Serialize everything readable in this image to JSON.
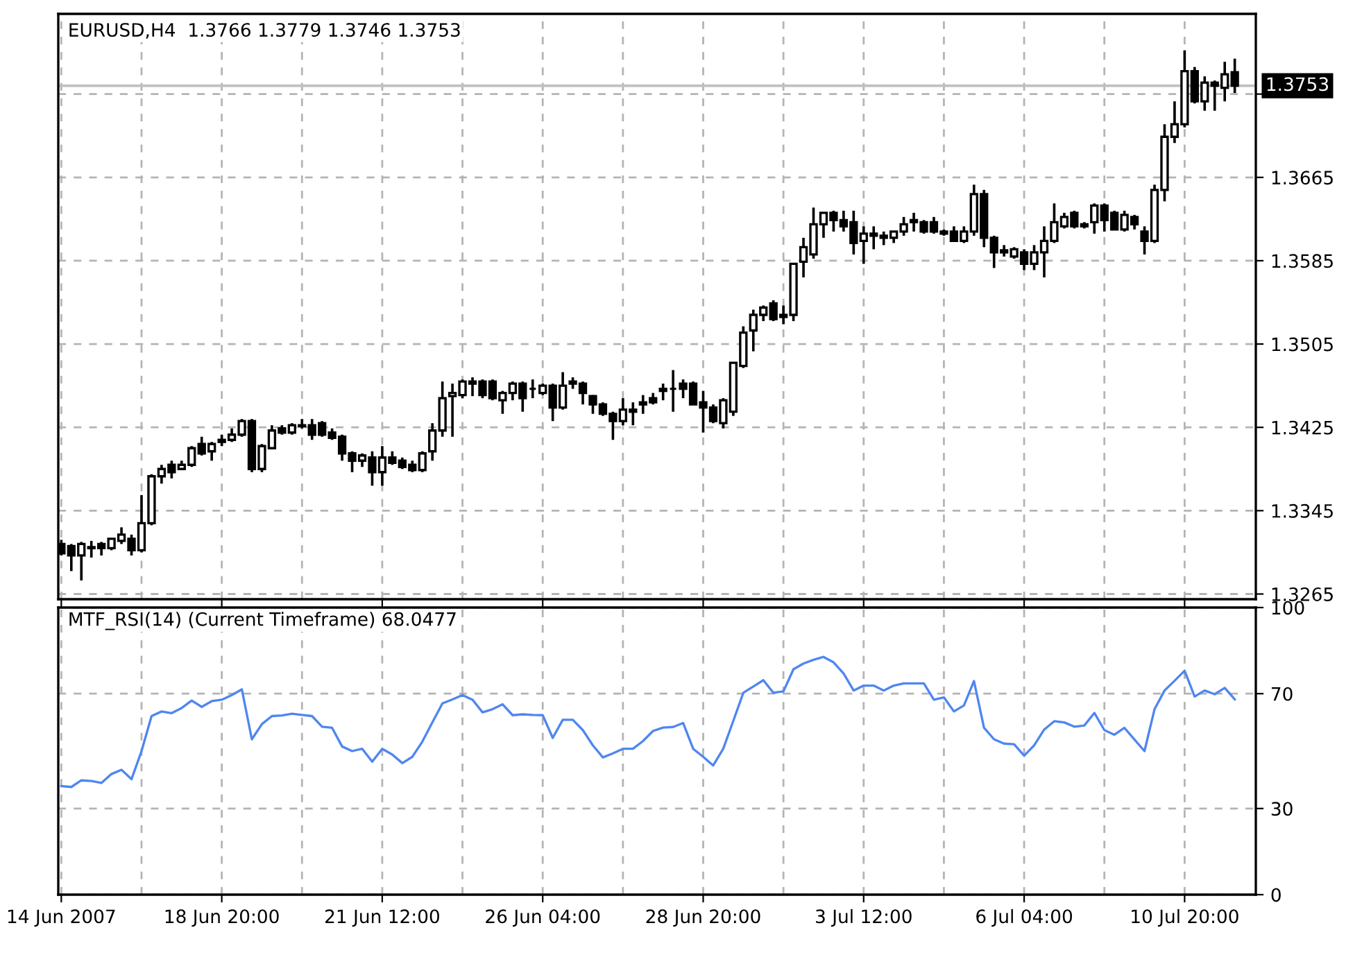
{
  "chart_data": [
    {
      "type": "candlestick",
      "title": "EURUSD,H4  1.3766 1.3779 1.3746 1.3753",
      "categories": [
        null,
        null,
        null,
        null,
        null,
        null,
        null,
        null,
        null,
        null,
        null,
        null,
        null,
        null,
        null,
        null,
        null,
        null,
        null,
        null,
        null,
        null,
        null,
        null,
        null,
        null,
        null,
        null,
        null,
        null,
        null,
        null,
        null,
        null,
        null,
        null,
        null,
        null,
        null,
        null,
        null,
        null,
        null,
        null,
        null,
        null,
        null,
        null,
        null,
        null,
        null,
        null,
        null,
        null,
        null,
        null,
        null,
        null,
        null,
        null,
        null,
        null,
        null,
        null,
        null,
        null,
        null,
        null,
        null,
        null,
        null,
        null,
        null,
        null,
        null,
        null,
        null,
        null,
        null,
        null,
        null,
        null,
        null,
        null,
        null,
        null,
        null,
        null,
        null,
        null,
        null,
        null,
        null,
        null,
        null,
        null,
        null,
        null,
        null,
        null,
        null,
        null,
        null,
        null,
        null,
        null,
        null,
        null,
        null,
        null,
        null,
        null,
        null,
        null,
        null,
        null,
        null,
        null
      ],
      "color": "#000000",
      "ohlc": [
        [
          1.3313,
          1.3317,
          1.3302,
          1.3304
        ],
        [
          1.3311,
          1.3313,
          1.3287,
          1.3302
        ],
        [
          1.3302,
          1.3315,
          1.3278,
          1.3313
        ],
        [
          1.3309,
          1.3316,
          1.33,
          1.331
        ],
        [
          1.3313,
          1.3315,
          1.3302,
          1.3309
        ],
        [
          1.3309,
          1.3318,
          1.3307,
          1.3318
        ],
        [
          1.3316,
          1.3329,
          1.3313,
          1.3322
        ],
        [
          1.3318,
          1.3322,
          1.3302,
          1.3307
        ],
        [
          1.3307,
          1.336,
          1.3305,
          1.3333
        ],
        [
          1.3333,
          1.338,
          1.3331,
          1.3378
        ],
        [
          1.3378,
          1.3389,
          1.3371,
          1.3385
        ],
        [
          1.3389,
          1.3393,
          1.3376,
          1.3382
        ],
        [
          1.3385,
          1.3393,
          1.3384,
          1.3389
        ],
        [
          1.3389,
          1.3407,
          1.3387,
          1.3405
        ],
        [
          1.3409,
          1.3416,
          1.3398,
          1.34
        ],
        [
          1.3402,
          1.3411,
          1.3393,
          1.3409
        ],
        [
          1.3411,
          1.3418,
          1.3407,
          1.3413
        ],
        [
          1.3413,
          1.3424,
          1.3411,
          1.3418
        ],
        [
          1.3418,
          1.3433,
          1.3416,
          1.3431
        ],
        [
          1.3431,
          1.3433,
          1.3382,
          1.3385
        ],
        [
          1.3385,
          1.3409,
          1.3382,
          1.3407
        ],
        [
          1.3405,
          1.3427,
          1.3404,
          1.3422
        ],
        [
          1.3424,
          1.3427,
          1.3418,
          1.342
        ],
        [
          1.342,
          1.3429,
          1.3418,
          1.3427
        ],
        [
          1.3426,
          1.3433,
          1.3424,
          1.3427
        ],
        [
          1.3427,
          1.3433,
          1.3413,
          1.3418
        ],
        [
          1.3429,
          1.3431,
          1.3416,
          1.3418
        ],
        [
          1.342,
          1.3424,
          1.3413,
          1.3415
        ],
        [
          1.3416,
          1.3418,
          1.3393,
          1.34
        ],
        [
          1.34,
          1.3402,
          1.3382,
          1.3393
        ],
        [
          1.3393,
          1.34,
          1.3387,
          1.3398
        ],
        [
          1.3396,
          1.3402,
          1.3369,
          1.3382
        ],
        [
          1.3382,
          1.3407,
          1.3369,
          1.3396
        ],
        [
          1.3396,
          1.3402,
          1.3389,
          1.3391
        ],
        [
          1.3393,
          1.3396,
          1.3385,
          1.3387
        ],
        [
          1.3389,
          1.3393,
          1.3382,
          1.3384
        ],
        [
          1.3384,
          1.3402,
          1.3382,
          1.34
        ],
        [
          1.3402,
          1.3429,
          1.3393,
          1.3422
        ],
        [
          1.3422,
          1.3469,
          1.3416,
          1.3453
        ],
        [
          1.3455,
          1.3467,
          1.3416,
          1.3458
        ],
        [
          1.3456,
          1.3471,
          1.3453,
          1.3469
        ],
        [
          1.3467,
          1.3473,
          1.3455,
          1.3469
        ],
        [
          1.3469,
          1.3471,
          1.3453,
          1.3456
        ],
        [
          1.3469,
          1.3471,
          1.3451,
          1.3453
        ],
        [
          1.3451,
          1.346,
          1.3438,
          1.3458
        ],
        [
          1.3458,
          1.3469,
          1.3451,
          1.3467
        ],
        [
          1.3467,
          1.3469,
          1.344,
          1.3453
        ],
        [
          1.3462,
          1.3471,
          1.3453,
          1.3462
        ],
        [
          1.3458,
          1.3467,
          1.3456,
          1.3465
        ],
        [
          1.3465,
          1.3467,
          1.3431,
          1.3444
        ],
        [
          1.3444,
          1.3478,
          1.3442,
          1.3465
        ],
        [
          1.3467,
          1.3473,
          1.3462,
          1.3469
        ],
        [
          1.3467,
          1.3469,
          1.3447,
          1.3458
        ],
        [
          1.3455,
          1.3456,
          1.3438,
          1.3447
        ],
        [
          1.3447,
          1.3449,
          1.3436,
          1.3438
        ],
        [
          1.3438,
          1.344,
          1.3413,
          1.3431
        ],
        [
          1.3431,
          1.3453,
          1.3427,
          1.3442
        ],
        [
          1.344,
          1.3449,
          1.3427,
          1.3442
        ],
        [
          1.3447,
          1.3456,
          1.3438,
          1.3449
        ],
        [
          1.3453,
          1.3458,
          1.3447,
          1.3449
        ],
        [
          1.346,
          1.3467,
          1.3451,
          1.3462
        ],
        [
          1.3462,
          1.348,
          1.344,
          1.3462
        ],
        [
          1.3467,
          1.3471,
          1.3453,
          1.3462
        ],
        [
          1.3467,
          1.3469,
          1.3447,
          1.3447
        ],
        [
          1.3449,
          1.346,
          1.342,
          1.3444
        ],
        [
          1.3444,
          1.3447,
          1.3429,
          1.3431
        ],
        [
          1.3429,
          1.3453,
          1.3424,
          1.3451
        ],
        [
          1.344,
          1.3487,
          1.3436,
          1.3487
        ],
        [
          1.3484,
          1.3522,
          1.3482,
          1.3516
        ],
        [
          1.3518,
          1.3538,
          1.3498,
          1.3533
        ],
        [
          1.3533,
          1.3542,
          1.3527,
          1.354
        ],
        [
          1.3544,
          1.3547,
          1.3527,
          1.3529
        ],
        [
          1.3531,
          1.3542,
          1.3524,
          1.3533
        ],
        [
          1.3533,
          1.3582,
          1.3527,
          1.3582
        ],
        [
          1.3584,
          1.3607,
          1.3569,
          1.3598
        ],
        [
          1.3591,
          1.3636,
          1.3587,
          1.362
        ],
        [
          1.362,
          1.3631,
          1.3607,
          1.3631
        ],
        [
          1.3631,
          1.3633,
          1.3613,
          1.3624
        ],
        [
          1.3624,
          1.3633,
          1.3613,
          1.3618
        ],
        [
          1.3622,
          1.3633,
          1.3591,
          1.3602
        ],
        [
          1.3604,
          1.3618,
          1.3582,
          1.3611
        ],
        [
          1.3609,
          1.3618,
          1.3596,
          1.3611
        ],
        [
          1.3609,
          1.3613,
          1.36,
          1.3607
        ],
        [
          1.3607,
          1.3613,
          1.3602,
          1.3613
        ],
        [
          1.3613,
          1.3627,
          1.3609,
          1.362
        ],
        [
          1.3622,
          1.3631,
          1.3613,
          1.3624
        ],
        [
          1.3622,
          1.3624,
          1.3611,
          1.3613
        ],
        [
          1.3622,
          1.3627,
          1.3611,
          1.3613
        ],
        [
          1.3613,
          1.3615,
          1.3609,
          1.3611
        ],
        [
          1.3613,
          1.3618,
          1.3604,
          1.3604
        ],
        [
          1.3604,
          1.3618,
          1.3602,
          1.3613
        ],
        [
          1.3613,
          1.3658,
          1.3609,
          1.3649
        ],
        [
          1.3649,
          1.3653,
          1.3598,
          1.3607
        ],
        [
          1.3607,
          1.3609,
          1.3578,
          1.3593
        ],
        [
          1.3593,
          1.36,
          1.3589,
          1.3595
        ],
        [
          1.3589,
          1.3598,
          1.3587,
          1.3596
        ],
        [
          1.3593,
          1.3596,
          1.3576,
          1.3582
        ],
        [
          1.3582,
          1.36,
          1.3576,
          1.3593
        ],
        [
          1.3593,
          1.3618,
          1.3569,
          1.3604
        ],
        [
          1.3604,
          1.364,
          1.3602,
          1.3622
        ],
        [
          1.3618,
          1.3631,
          1.3616,
          1.3627
        ],
        [
          1.3631,
          1.3633,
          1.3616,
          1.3618
        ],
        [
          1.3618,
          1.3622,
          1.3616,
          1.362
        ],
        [
          1.3622,
          1.364,
          1.3611,
          1.3638
        ],
        [
          1.3638,
          1.364,
          1.3613,
          1.3624
        ],
        [
          1.3631,
          1.3633,
          1.3615,
          1.3615
        ],
        [
          1.3615,
          1.3633,
          1.3613,
          1.3629
        ],
        [
          1.3627,
          1.3629,
          1.3615,
          1.362
        ],
        [
          1.3613,
          1.3618,
          1.3591,
          1.3604
        ],
        [
          1.3604,
          1.3658,
          1.3602,
          1.3653
        ],
        [
          1.3653,
          1.3716,
          1.3642,
          1.3704
        ],
        [
          1.3704,
          1.3738,
          1.3698,
          1.3716
        ],
        [
          1.3716,
          1.3787,
          1.3713,
          1.3767
        ],
        [
          1.3767,
          1.3771,
          1.3736,
          1.3738
        ],
        [
          1.3738,
          1.3762,
          1.3729,
          1.3756
        ],
        [
          1.3756,
          1.3758,
          1.3729,
          1.3753
        ],
        [
          1.3751,
          1.3776,
          1.3738,
          1.3764
        ],
        [
          1.3766,
          1.3779,
          1.3746,
          1.3753
        ]
      ],
      "ylim": [
        1.326,
        1.3822
      ],
      "yticks": [
        1.3265,
        1.3345,
        1.3425,
        1.3505,
        1.3585,
        1.3665,
        {
          "value": 1.3745,
          "label": null
        }
      ],
      "ref_lines": [
        {
          "axis": "y",
          "value": 1.3753,
          "label": "1.3753",
          "color": "#c0c0c0"
        }
      ],
      "grid": true,
      "tick_labels": "y"
    },
    {
      "type": "line",
      "title": "MTF_RSI(14) (Current Timeframe) 68.0477",
      "categories": [
        "14 Jun 2007",
        null,
        null,
        null,
        null,
        null,
        null,
        null,
        null,
        null,
        null,
        null,
        null,
        null,
        null,
        null,
        "18 Jun 20:00",
        null,
        null,
        null,
        null,
        null,
        null,
        null,
        null,
        null,
        null,
        null,
        null,
        null,
        null,
        null,
        "21 Jun 12:00",
        null,
        null,
        null,
        null,
        null,
        null,
        null,
        null,
        null,
        null,
        null,
        null,
        null,
        null,
        null,
        "26 Jun 04:00",
        null,
        null,
        null,
        null,
        null,
        null,
        null,
        null,
        null,
        null,
        null,
        null,
        null,
        null,
        null,
        "28 Jun 20:00",
        null,
        null,
        null,
        null,
        null,
        null,
        null,
        null,
        null,
        null,
        null,
        null,
        null,
        null,
        null,
        "3 Jul 12:00",
        null,
        null,
        null,
        null,
        null,
        null,
        null,
        null,
        null,
        null,
        null,
        null,
        null,
        null,
        null,
        "6 Jul 04:00",
        null,
        null,
        null,
        null,
        null,
        null,
        null,
        null,
        null,
        null,
        null,
        null,
        null,
        null,
        null,
        "10 Jul 20:00",
        null,
        null,
        null,
        null,
        null
      ],
      "series": [
        {
          "color": "#4f86f0",
          "values": [
            37.8,
            37.5,
            39.8,
            39.6,
            38.9,
            42.0,
            43.5,
            40.2,
            50.0,
            62.2,
            63.8,
            63.2,
            65.0,
            67.6,
            65.4,
            67.4,
            67.9,
            69.5,
            71.5,
            54.1,
            59.4,
            62.2,
            62.4,
            63.0,
            62.6,
            62.2,
            58.5,
            58.1,
            51.6,
            50.0,
            50.8,
            46.3,
            50.8,
            48.8,
            45.8,
            48.0,
            53.3,
            60.0,
            66.6,
            68.0,
            69.5,
            67.9,
            63.5,
            64.6,
            66.3,
            62.5,
            62.8,
            62.6,
            62.5,
            54.6,
            60.9,
            60.9,
            57.3,
            52.0,
            47.8,
            49.2,
            50.8,
            50.8,
            53.5,
            57.0,
            58.2,
            58.4,
            59.8,
            50.8,
            48.0,
            45.0,
            50.8,
            60.5,
            70.3,
            72.5,
            74.7,
            70.3,
            70.8,
            78.5,
            80.5,
            81.8,
            82.8,
            80.9,
            77.0,
            71.1,
            72.8,
            72.8,
            71.1,
            72.8,
            73.6,
            73.6,
            73.6,
            67.9,
            68.7,
            63.8,
            65.9,
            74.4,
            58.1,
            54.1,
            52.6,
            52.4,
            48.4,
            52.0,
            57.5,
            60.4,
            60.0,
            58.5,
            58.9,
            63.3,
            57.3,
            55.7,
            58.1,
            54.0,
            50.0,
            64.6,
            71.1,
            74.5,
            78.0,
            69.0,
            71.1,
            69.8,
            72.0,
            68.0
          ]
        }
      ],
      "ylim": [
        0,
        100
      ],
      "yticks": [
        0,
        30,
        70,
        100
      ],
      "grid": true,
      "marker": "none",
      "line_style": "solid"
    }
  ]
}
